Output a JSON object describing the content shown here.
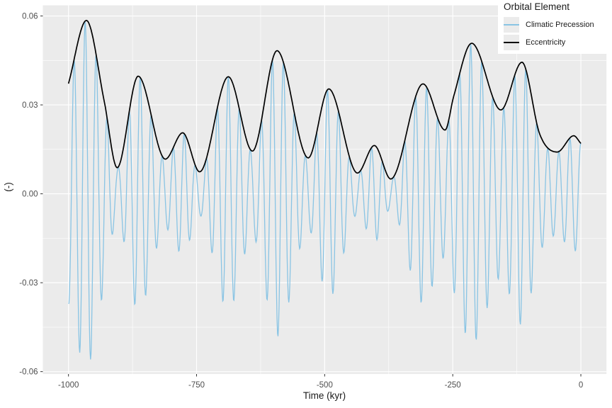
{
  "axes": {
    "x_title": "Time (kyr)",
    "y_title": "(-)"
  },
  "chart_data": {
    "type": "line",
    "title": "",
    "xlabel": "Time (kyr)",
    "ylabel": "(-)",
    "xlim": [
      -1050,
      50
    ],
    "ylim": [
      -0.0608,
      0.0636
    ],
    "x_ticks": [
      -1000,
      -750,
      -500,
      -250,
      0
    ],
    "x_tick_labels": [
      "-1000",
      "-750",
      "-500",
      "-250",
      "0"
    ],
    "y_ticks": [
      0.06,
      0.03,
      0,
      -0.03,
      -0.06
    ],
    "y_tick_labels": [
      "0.06",
      "0.03",
      "0.00",
      "-0.03",
      "-0.06"
    ],
    "grid": {
      "major": true,
      "minor": true
    },
    "panel": {
      "bg": "#EBEBEB",
      "grid_major_color": "#FFFFFF",
      "grid_minor_color": "#FFFFFF"
    },
    "axis_text_color": "#4D4D4D",
    "tick_color": "#333333",
    "legend": {
      "title": "Orbital Element",
      "position": "top-right",
      "entries": [
        {
          "label": "Climatic Precession",
          "color": "#89C4E4"
        },
        {
          "label": "Eccentricity",
          "color": "#000000"
        }
      ]
    },
    "series": [
      {
        "name": "Climatic Precession",
        "color": "#89C4E4",
        "model": "eccentricity_envelope(t) * cos(2*pi*t/period_kyr)",
        "period_kyr": 21.5,
        "sample_step_kyr": 1,
        "t_range_kyr": [
          -1000,
          0
        ]
      },
      {
        "name": "Eccentricity",
        "color": "#000000",
        "points": [
          [
            -1000,
            0.0372
          ],
          [
            -965,
            0.0585
          ],
          [
            -930,
            0.031
          ],
          [
            -905,
            0.0088
          ],
          [
            -864,
            0.0397
          ],
          [
            -811,
            0.0117
          ],
          [
            -777,
            0.0206
          ],
          [
            -744,
            0.0074
          ],
          [
            -688,
            0.0395
          ],
          [
            -641,
            0.0144
          ],
          [
            -593,
            0.0483
          ],
          [
            -532,
            0.0121
          ],
          [
            -492,
            0.0354
          ],
          [
            -436,
            0.007
          ],
          [
            -403,
            0.0163
          ],
          [
            -371,
            0.005
          ],
          [
            -308,
            0.0371
          ],
          [
            -265,
            0.0215
          ],
          [
            -248,
            0.033
          ],
          [
            -213,
            0.0508
          ],
          [
            -156,
            0.0283
          ],
          [
            -115,
            0.0444
          ],
          [
            -80,
            0.02
          ],
          [
            -46,
            0.0141
          ],
          [
            -14,
            0.0196
          ],
          [
            0,
            0.017
          ]
        ]
      }
    ]
  }
}
